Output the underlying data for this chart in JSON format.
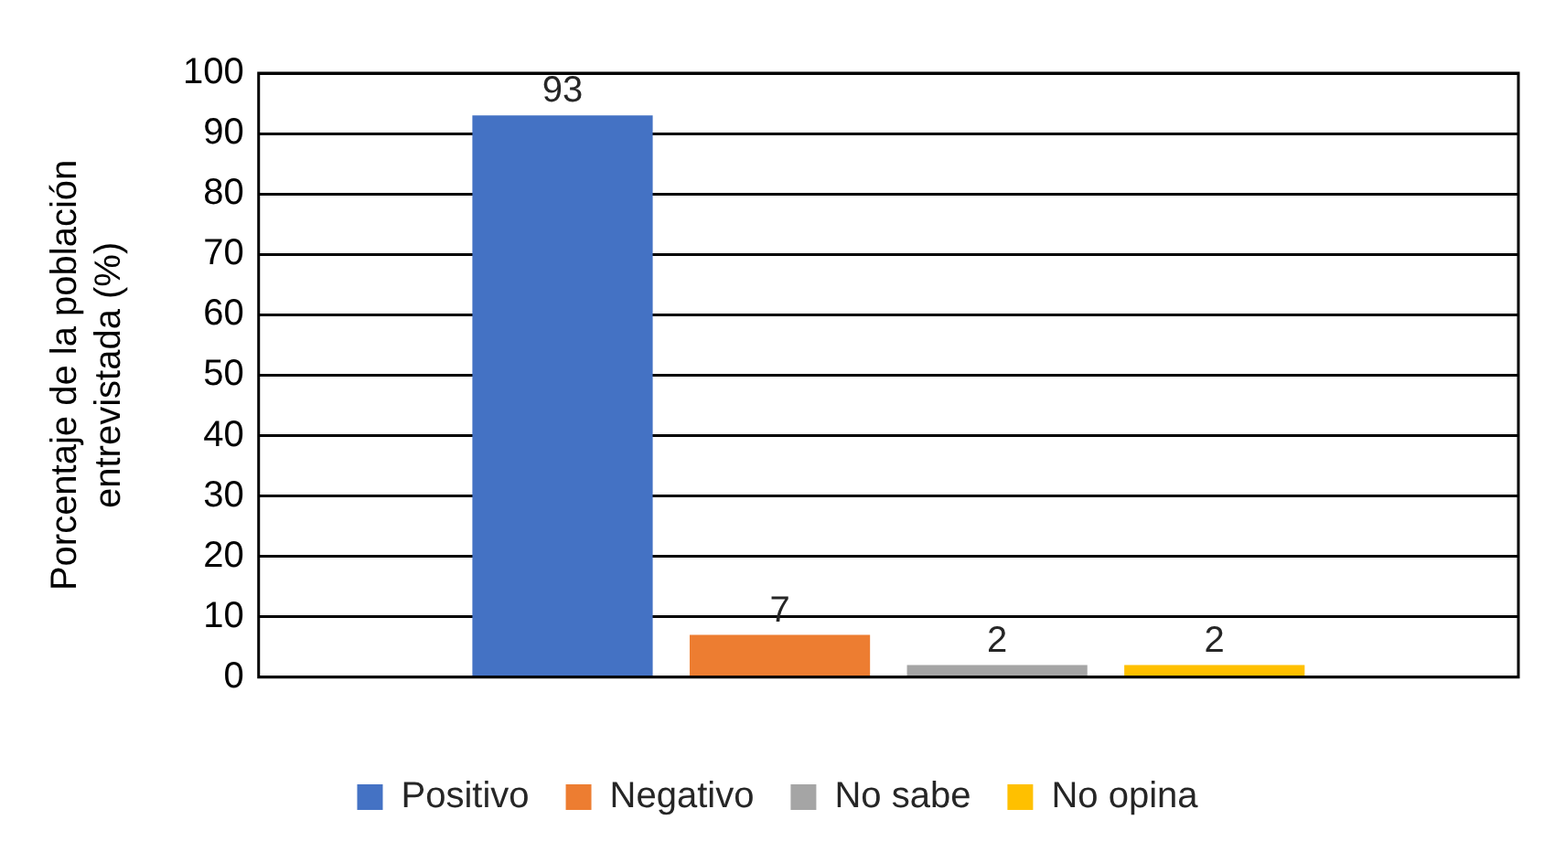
{
  "chart_data": {
    "type": "bar",
    "ylabel": "Porcentaje de la población\nentrevistada (%)",
    "categories": [
      null
    ],
    "series": [
      {
        "name": "Positivo",
        "color": "#4472c4",
        "values": [
          93
        ]
      },
      {
        "name": "Negativo",
        "color": "#ed7d31",
        "values": [
          7
        ]
      },
      {
        "name": "No sabe",
        "color": "#a5a5a5",
        "values": [
          2
        ]
      },
      {
        "name": "No opina",
        "color": "#ffc000",
        "values": [
          2
        ]
      }
    ],
    "ylim": [
      0,
      100
    ],
    "yticks": [
      0,
      10,
      20,
      30,
      40,
      50,
      60,
      70,
      80,
      90,
      100
    ],
    "grid": "y",
    "legend": "bottom",
    "data_labels": true
  }
}
